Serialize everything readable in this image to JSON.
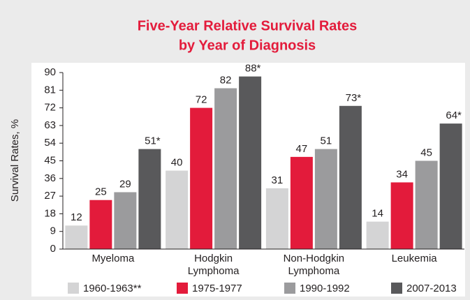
{
  "chart_data": {
    "type": "bar",
    "title": [
      "Five-Year Relative Survival Rates",
      "by Year of Diagnosis"
    ],
    "y_label": "Survival Rates, %",
    "categories": [
      "Myeloma",
      "Hodgkin Lymphoma",
      "Non-Hodgkin Lymphoma",
      "Leukemia"
    ],
    "series": [
      {
        "name": "1960-1963**",
        "color": "#d4d4d5",
        "values": [
          12,
          40,
          31,
          14
        ]
      },
      {
        "name": "1975-1977",
        "color": "#e31b3b",
        "values": [
          25,
          72,
          47,
          34
        ]
      },
      {
        "name": "1990-1992",
        "color": "#9b9b9d",
        "values": [
          29,
          82,
          51,
          45
        ]
      },
      {
        "name": "2007-2013",
        "color": "#59595b",
        "values": [
          51,
          88,
          73,
          64
        ],
        "value_labels": [
          "51*",
          "88*",
          "73*",
          "64*"
        ]
      }
    ],
    "ylim": [
      0,
      90
    ],
    "yticks": [
      0,
      9,
      18,
      27,
      36,
      45,
      54,
      63,
      72,
      81,
      90
    ],
    "grid": false
  }
}
